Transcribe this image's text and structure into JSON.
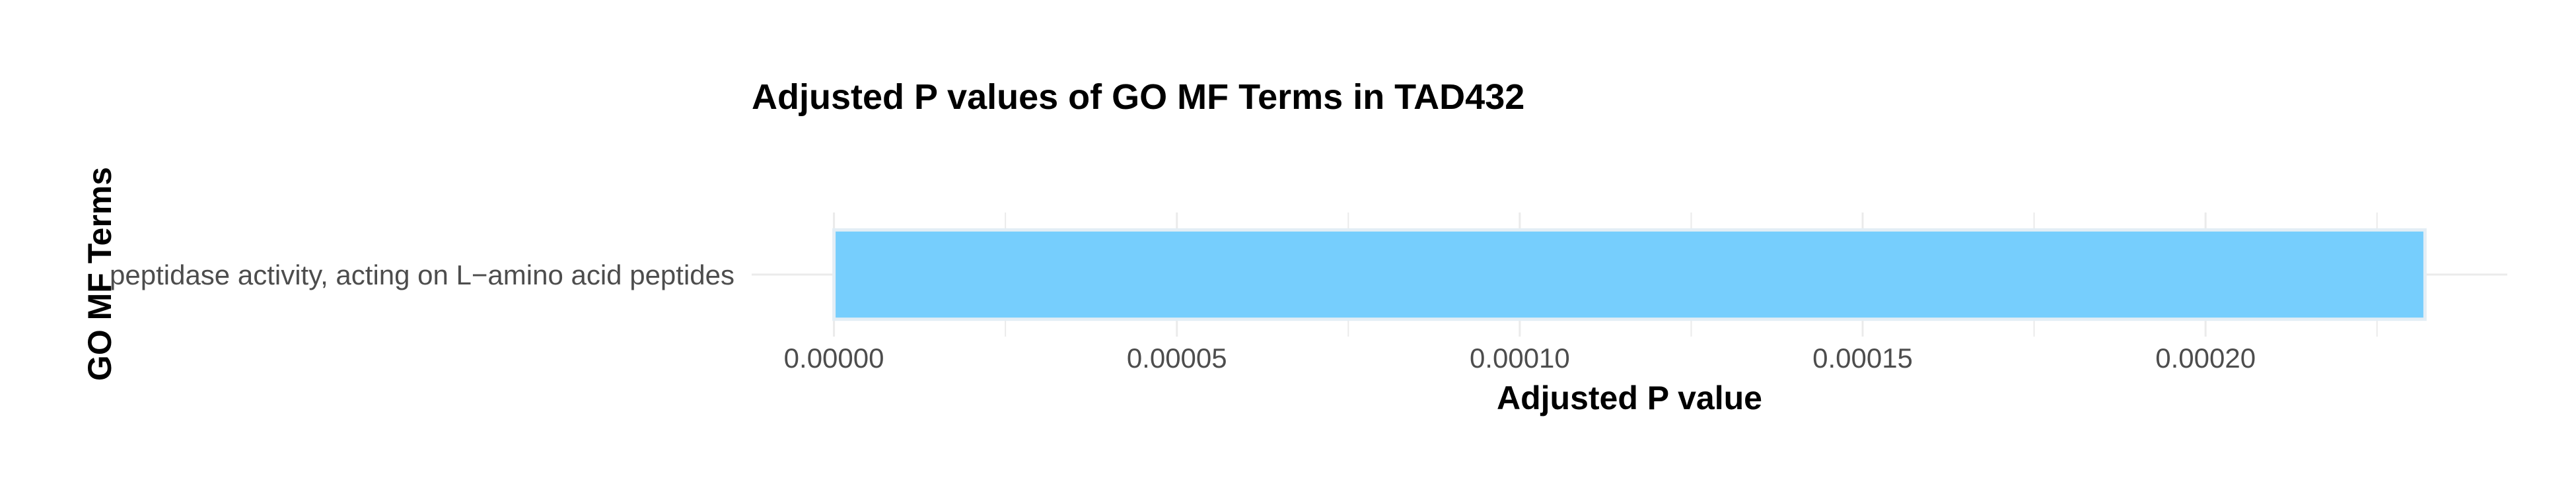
{
  "chart_data": {
    "type": "bar",
    "orientation": "horizontal",
    "title": "Adjusted P values of GO MF Terms in TAD432",
    "xlabel": "Adjusted P value",
    "ylabel": "GO MF Terms",
    "categories": [
      "peptidase activity, acting on L−amino acid peptides"
    ],
    "values": [
      0.000232
    ],
    "xlim": [
      -1.2e-05,
      0.000244
    ],
    "xticks": [
      0.0,
      5e-05,
      0.0001,
      0.00015,
      0.0002
    ],
    "xtick_labels": [
      "0.00000",
      "0.00005",
      "0.00010",
      "0.00015",
      "0.00020"
    ],
    "grid": true,
    "bar_color": "#76CEFD",
    "bar_edge_color": "#E3EEF5",
    "grid_color": "#EBEBEB"
  }
}
